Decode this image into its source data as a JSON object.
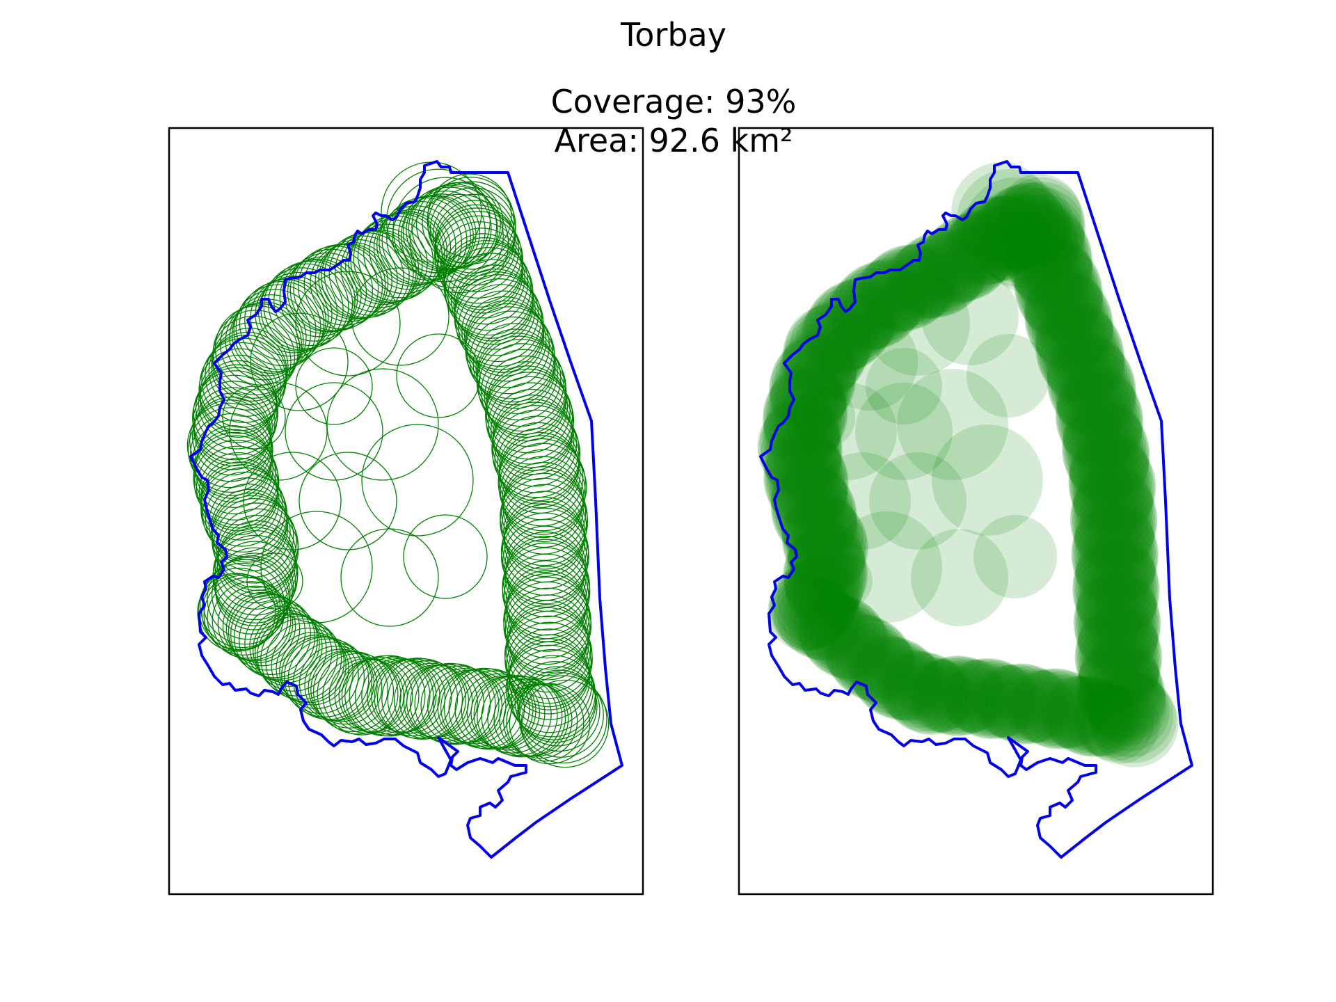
{
  "figure": {
    "title": "Torbay",
    "coverage_text": "Coverage: 93%",
    "area_text": "Area: 92.6 km²"
  },
  "colors": {
    "boundary": "#0000ee",
    "circle": "#008000",
    "frame": "#000000",
    "background": "#ffffff"
  },
  "panels": [
    {
      "name": "circle-outlines",
      "style": "outline"
    },
    {
      "name": "circle-coverage",
      "style": "filled"
    }
  ]
}
